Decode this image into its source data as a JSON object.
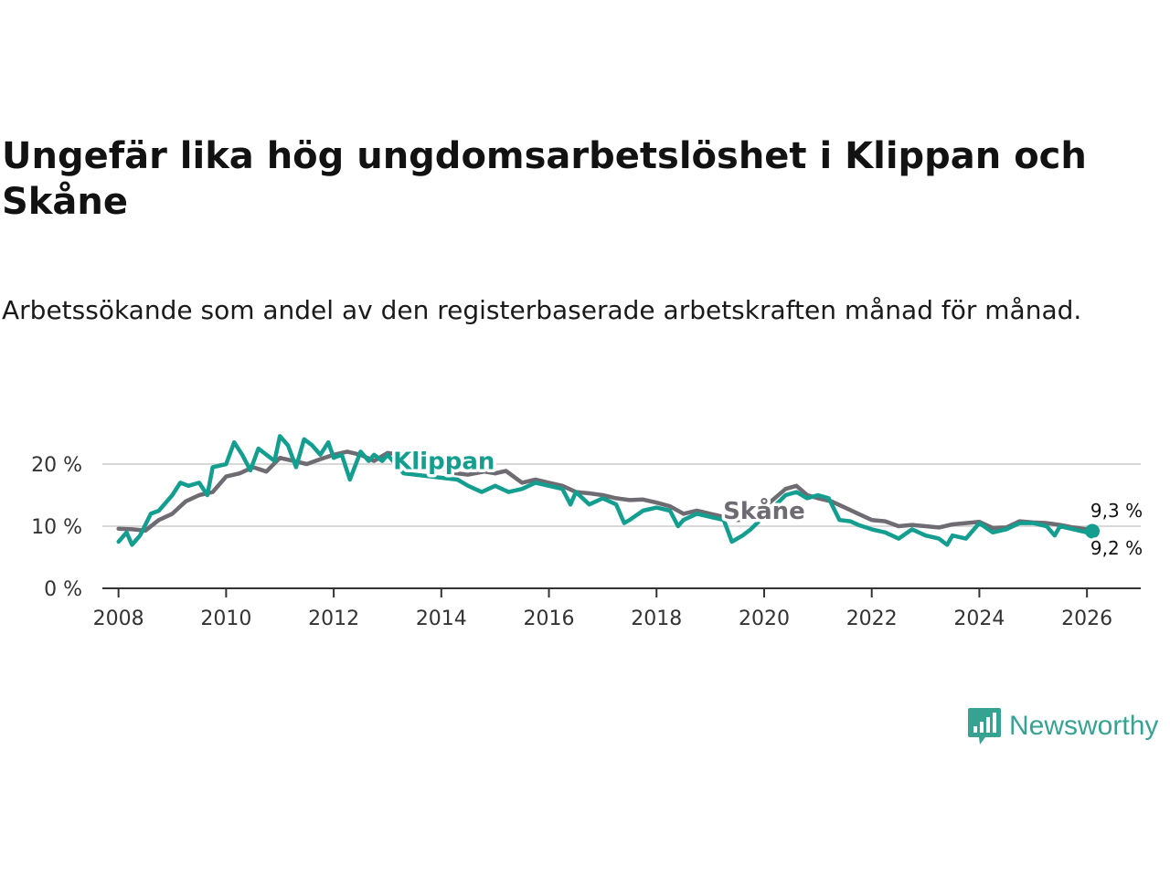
{
  "header": {
    "title": "Ungefär lika hög ungdomsarbetslöshet i Klippan och Skåne",
    "subtitle": "Arbetssökande som andel av den registerbaserade arbetskraften månad för månad."
  },
  "brand": {
    "name": "Newsworthy",
    "color": "#36a392"
  },
  "chart_data": {
    "type": "line",
    "title": "Ungefär lika hög ungdomsarbetslöshet i Klippan och Skåne",
    "subtitle": "Arbetssökande som andel av den registerbaserade arbetskraften månad för månad.",
    "xlabel": "",
    "ylabel": "",
    "xlim": [
      2007.7,
      2027.0
    ],
    "ylim": [
      0,
      20
    ],
    "x_ticks": [
      2008,
      2010,
      2012,
      2014,
      2016,
      2018,
      2020,
      2022,
      2024,
      2026
    ],
    "x_tick_labels": [
      "2008",
      "2010",
      "2012",
      "2014",
      "2016",
      "2018",
      "2020",
      "2022",
      "2024",
      "2026"
    ],
    "y_ticks": [
      0,
      10,
      20
    ],
    "y_tick_labels": [
      "0 %",
      "10 %",
      "20 %"
    ],
    "grid": true,
    "series": [
      {
        "name": "Skåne",
        "color": "#6f6b72",
        "label": "Skåne",
        "end_label": "9,3 %",
        "points": [
          [
            2008.0,
            9.6
          ],
          [
            2008.25,
            9.5
          ],
          [
            2008.5,
            9.3
          ],
          [
            2008.75,
            11.0
          ],
          [
            2009.0,
            12.0
          ],
          [
            2009.25,
            14.0
          ],
          [
            2009.5,
            15.0
          ],
          [
            2009.75,
            15.5
          ],
          [
            2010.0,
            18.0
          ],
          [
            2010.25,
            18.5
          ],
          [
            2010.5,
            19.5
          ],
          [
            2010.75,
            18.8
          ],
          [
            2011.0,
            21.0
          ],
          [
            2011.25,
            20.5
          ],
          [
            2011.5,
            20.0
          ],
          [
            2011.75,
            20.8
          ],
          [
            2012.0,
            21.5
          ],
          [
            2012.25,
            22.0
          ],
          [
            2012.5,
            21.5
          ],
          [
            2012.75,
            20.5
          ],
          [
            2013.0,
            21.8
          ],
          [
            2013.25,
            21.5
          ],
          [
            2013.5,
            21.2
          ],
          [
            2014.2,
            18.6
          ],
          [
            2014.5,
            18.3
          ],
          [
            2014.8,
            18.8
          ],
          [
            2015.0,
            18.5
          ],
          [
            2015.2,
            18.9
          ],
          [
            2015.5,
            17.0
          ],
          [
            2015.75,
            17.5
          ],
          [
            2016.0,
            17.0
          ],
          [
            2016.25,
            16.5
          ],
          [
            2016.5,
            15.5
          ],
          [
            2016.75,
            15.3
          ],
          [
            2017.0,
            15.0
          ],
          [
            2017.25,
            14.5
          ],
          [
            2017.5,
            14.2
          ],
          [
            2017.75,
            14.3
          ],
          [
            2018.0,
            13.8
          ],
          [
            2018.25,
            13.2
          ],
          [
            2018.5,
            12.0
          ],
          [
            2018.75,
            12.5
          ],
          [
            2019.0,
            12.0
          ],
          [
            2019.25,
            11.5
          ],
          [
            2019.5,
            11.0
          ],
          [
            2019.75,
            11.2
          ],
          [
            2020.4,
            16.0
          ],
          [
            2020.6,
            16.5
          ],
          [
            2020.8,
            15.0
          ],
          [
            2021.0,
            14.5
          ],
          [
            2021.25,
            14.0
          ],
          [
            2021.5,
            13.0
          ],
          [
            2021.75,
            12.0
          ],
          [
            2022.0,
            11.0
          ],
          [
            2022.25,
            10.8
          ],
          [
            2022.5,
            10.0
          ],
          [
            2022.75,
            10.2
          ],
          [
            2023.0,
            10.0
          ],
          [
            2023.25,
            9.8
          ],
          [
            2023.5,
            10.3
          ],
          [
            2023.75,
            10.5
          ],
          [
            2024.0,
            10.7
          ],
          [
            2024.25,
            9.7
          ],
          [
            2024.5,
            9.8
          ],
          [
            2024.75,
            10.8
          ],
          [
            2025.0,
            10.6
          ],
          [
            2025.25,
            10.5
          ],
          [
            2025.5,
            10.2
          ],
          [
            2025.75,
            9.8
          ],
          [
            2026.0,
            9.5
          ],
          [
            2026.1,
            9.3
          ]
        ]
      },
      {
        "name": "Klippan",
        "color": "#139e8f",
        "label": "Klippan",
        "end_label": "9,2 %",
        "points": [
          [
            2008.0,
            7.5
          ],
          [
            2008.15,
            9.0
          ],
          [
            2008.25,
            7.0
          ],
          [
            2008.4,
            8.5
          ],
          [
            2008.6,
            12.0
          ],
          [
            2008.75,
            12.5
          ],
          [
            2009.0,
            15.0
          ],
          [
            2009.15,
            17.0
          ],
          [
            2009.3,
            16.5
          ],
          [
            2009.5,
            17.0
          ],
          [
            2009.65,
            15.0
          ],
          [
            2009.75,
            19.5
          ],
          [
            2010.0,
            20.0
          ],
          [
            2010.15,
            23.5
          ],
          [
            2010.3,
            21.5
          ],
          [
            2010.45,
            19.0
          ],
          [
            2010.6,
            22.5
          ],
          [
            2010.75,
            21.5
          ],
          [
            2010.9,
            20.5
          ],
          [
            2011.0,
            24.5
          ],
          [
            2011.15,
            23.0
          ],
          [
            2011.3,
            19.5
          ],
          [
            2011.45,
            24.0
          ],
          [
            2011.6,
            23.0
          ],
          [
            2011.75,
            21.5
          ],
          [
            2011.9,
            23.5
          ],
          [
            2012.0,
            21.0
          ],
          [
            2012.15,
            21.5
          ],
          [
            2012.3,
            17.5
          ],
          [
            2012.5,
            22.0
          ],
          [
            2012.65,
            20.5
          ],
          [
            2012.75,
            21.5
          ],
          [
            2012.9,
            20.5
          ],
          [
            2013.0,
            21.5
          ],
          [
            2013.3,
            18.5
          ],
          [
            2014.3,
            17.5
          ],
          [
            2014.5,
            16.5
          ],
          [
            2014.75,
            15.5
          ],
          [
            2015.0,
            16.5
          ],
          [
            2015.25,
            15.5
          ],
          [
            2015.5,
            16.0
          ],
          [
            2015.75,
            17.0
          ],
          [
            2016.0,
            16.5
          ],
          [
            2016.25,
            16.0
          ],
          [
            2016.4,
            13.5
          ],
          [
            2016.5,
            15.5
          ],
          [
            2016.75,
            13.5
          ],
          [
            2017.0,
            14.5
          ],
          [
            2017.25,
            13.5
          ],
          [
            2017.4,
            10.5
          ],
          [
            2017.5,
            11.0
          ],
          [
            2017.75,
            12.5
          ],
          [
            2018.0,
            13.0
          ],
          [
            2018.25,
            12.5
          ],
          [
            2018.4,
            10.0
          ],
          [
            2018.5,
            11.0
          ],
          [
            2018.75,
            12.0
          ],
          [
            2019.0,
            11.5
          ],
          [
            2019.25,
            11.0
          ],
          [
            2019.4,
            7.5
          ],
          [
            2019.6,
            8.5
          ],
          [
            2019.75,
            9.5
          ],
          [
            2020.4,
            15.0
          ],
          [
            2020.6,
            15.5
          ],
          [
            2020.8,
            14.5
          ],
          [
            2021.0,
            15.0
          ],
          [
            2021.2,
            14.5
          ],
          [
            2021.4,
            11.0
          ],
          [
            2021.6,
            10.8
          ],
          [
            2021.75,
            10.2
          ],
          [
            2022.0,
            9.5
          ],
          [
            2022.25,
            9.0
          ],
          [
            2022.5,
            8.0
          ],
          [
            2022.75,
            9.5
          ],
          [
            2023.0,
            8.5
          ],
          [
            2023.25,
            8.0
          ],
          [
            2023.4,
            7.0
          ],
          [
            2023.5,
            8.5
          ],
          [
            2023.75,
            8.0
          ],
          [
            2024.0,
            10.5
          ],
          [
            2024.25,
            9.0
          ],
          [
            2024.5,
            9.5
          ],
          [
            2024.75,
            10.5
          ],
          [
            2025.0,
            10.5
          ],
          [
            2025.25,
            10.0
          ],
          [
            2025.4,
            8.5
          ],
          [
            2025.5,
            10.0
          ],
          [
            2025.75,
            9.5
          ],
          [
            2026.0,
            9.0
          ],
          [
            2026.1,
            9.2
          ]
        ]
      }
    ]
  }
}
